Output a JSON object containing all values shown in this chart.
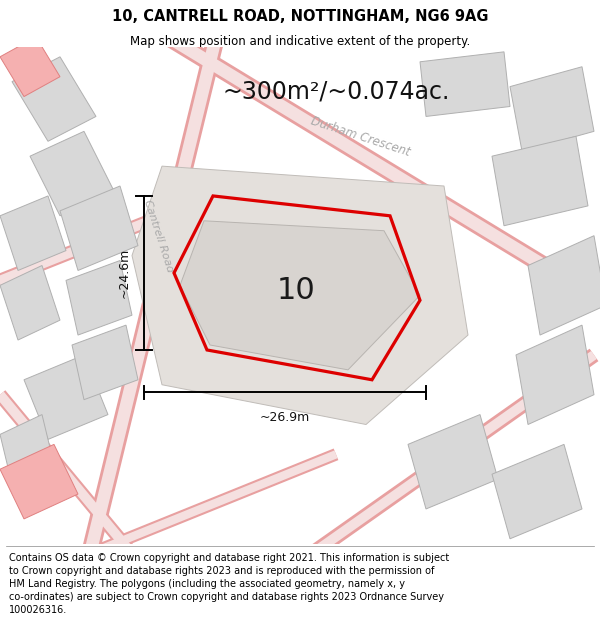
{
  "title": "10, CANTRELL ROAD, NOTTINGHAM, NG6 9AG",
  "subtitle": "Map shows position and indicative extent of the property.",
  "footer": "Contains OS data © Crown copyright and database right 2021. This information is subject\nto Crown copyright and database rights 2023 and is reproduced with the permission of\nHM Land Registry. The polygons (including the associated geometry, namely x, y\nco-ordinates) are subject to Crown copyright and database rights 2023 Ordnance Survey\n100026316.",
  "area_label": "~300m²/~0.074ac.",
  "width_label": "~26.9m",
  "height_label": "~24.6m",
  "plot_number": "10",
  "map_bg": "#f7f3f0",
  "plot_color": "#dd0000",
  "road_label_cantrell": "Cantrell Road",
  "road_label_durham": "Durham Crescent",
  "title_fontsize": 10.5,
  "subtitle_fontsize": 8.5,
  "footer_fontsize": 7.0,
  "area_fontsize": 17,
  "plot_number_fontsize": 22,
  "dim_fontsize": 9,
  "road_label_fontsize": 8,
  "road_color": "#e8a0a0",
  "road_center_color": "#f5e0e0",
  "building_fill": "#d8d8d8",
  "building_edge": "#b0b0b0",
  "pink_fill": "#f5b0b0",
  "pink_edge": "#e08080"
}
